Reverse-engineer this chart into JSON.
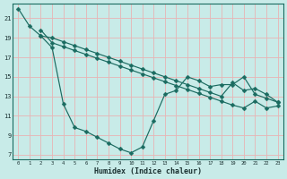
{
  "xlabel": "Humidex (Indice chaleur)",
  "bg_color": "#c8ebe8",
  "line_color": "#1a6b60",
  "grid_color": "#e8b4b4",
  "xlim": [
    -0.5,
    23.5
  ],
  "ylim": [
    6.5,
    22.5
  ],
  "xticks": [
    0,
    1,
    2,
    3,
    4,
    5,
    6,
    7,
    8,
    9,
    10,
    11,
    12,
    13,
    14,
    15,
    16,
    17,
    18,
    19,
    20,
    21,
    22,
    23
  ],
  "yticks": [
    7,
    9,
    11,
    13,
    15,
    17,
    19,
    21
  ],
  "series1_x": [
    2,
    3,
    4,
    5,
    6,
    7,
    8,
    9,
    10,
    11,
    12,
    13,
    14,
    15,
    16,
    17,
    18,
    19,
    20,
    21,
    22,
    23
  ],
  "series1_y": [
    19.2,
    19.0,
    18.6,
    18.2,
    17.8,
    17.4,
    17.0,
    16.6,
    16.2,
    15.8,
    15.4,
    15.0,
    14.6,
    14.2,
    13.8,
    13.4,
    13.0,
    14.4,
    13.6,
    13.8,
    13.2,
    12.4
  ],
  "series2_x": [
    2,
    3,
    4,
    5,
    6,
    7,
    8,
    9,
    10,
    11,
    12,
    13,
    14,
    15,
    16,
    17,
    18,
    19,
    20,
    21,
    22,
    23
  ],
  "series2_y": [
    19.8,
    18.5,
    18.1,
    17.7,
    17.3,
    16.9,
    16.5,
    16.1,
    15.7,
    15.3,
    14.9,
    14.5,
    14.1,
    13.7,
    13.3,
    12.9,
    12.5,
    12.1,
    11.8,
    12.5,
    11.8,
    12.0
  ],
  "series3_x": [
    0,
    1,
    2,
    3,
    4,
    5,
    6,
    7,
    8,
    9,
    10,
    11,
    12,
    13,
    14,
    15,
    16,
    17,
    18,
    19,
    20,
    21,
    22,
    23
  ],
  "series3_y": [
    22.0,
    20.2,
    19.2,
    18.0,
    12.2,
    9.8,
    9.4,
    8.8,
    8.2,
    7.6,
    7.2,
    7.8,
    10.5,
    13.2,
    13.6,
    15.0,
    14.6,
    14.0,
    14.2,
    14.2,
    15.0,
    13.2,
    12.8,
    12.4
  ],
  "lw": 0.85,
  "ms": 2.5
}
